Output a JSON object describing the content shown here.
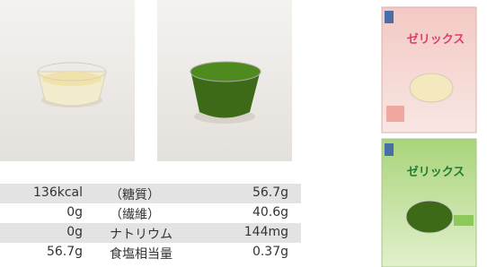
{
  "products": [
    {
      "label": "ゼリックス"
    },
    {
      "label": "ゼリックス"
    }
  ],
  "table": {
    "rows": [
      [
        "136kcal",
        "（糖質）",
        "56.7g"
      ],
      [
        "0g",
        "（繊維）",
        "40.6g"
      ],
      [
        "0g",
        "ナトリウム",
        "144mg"
      ],
      [
        "56.7g",
        "食塩相当量",
        "0.37g"
      ]
    ]
  }
}
